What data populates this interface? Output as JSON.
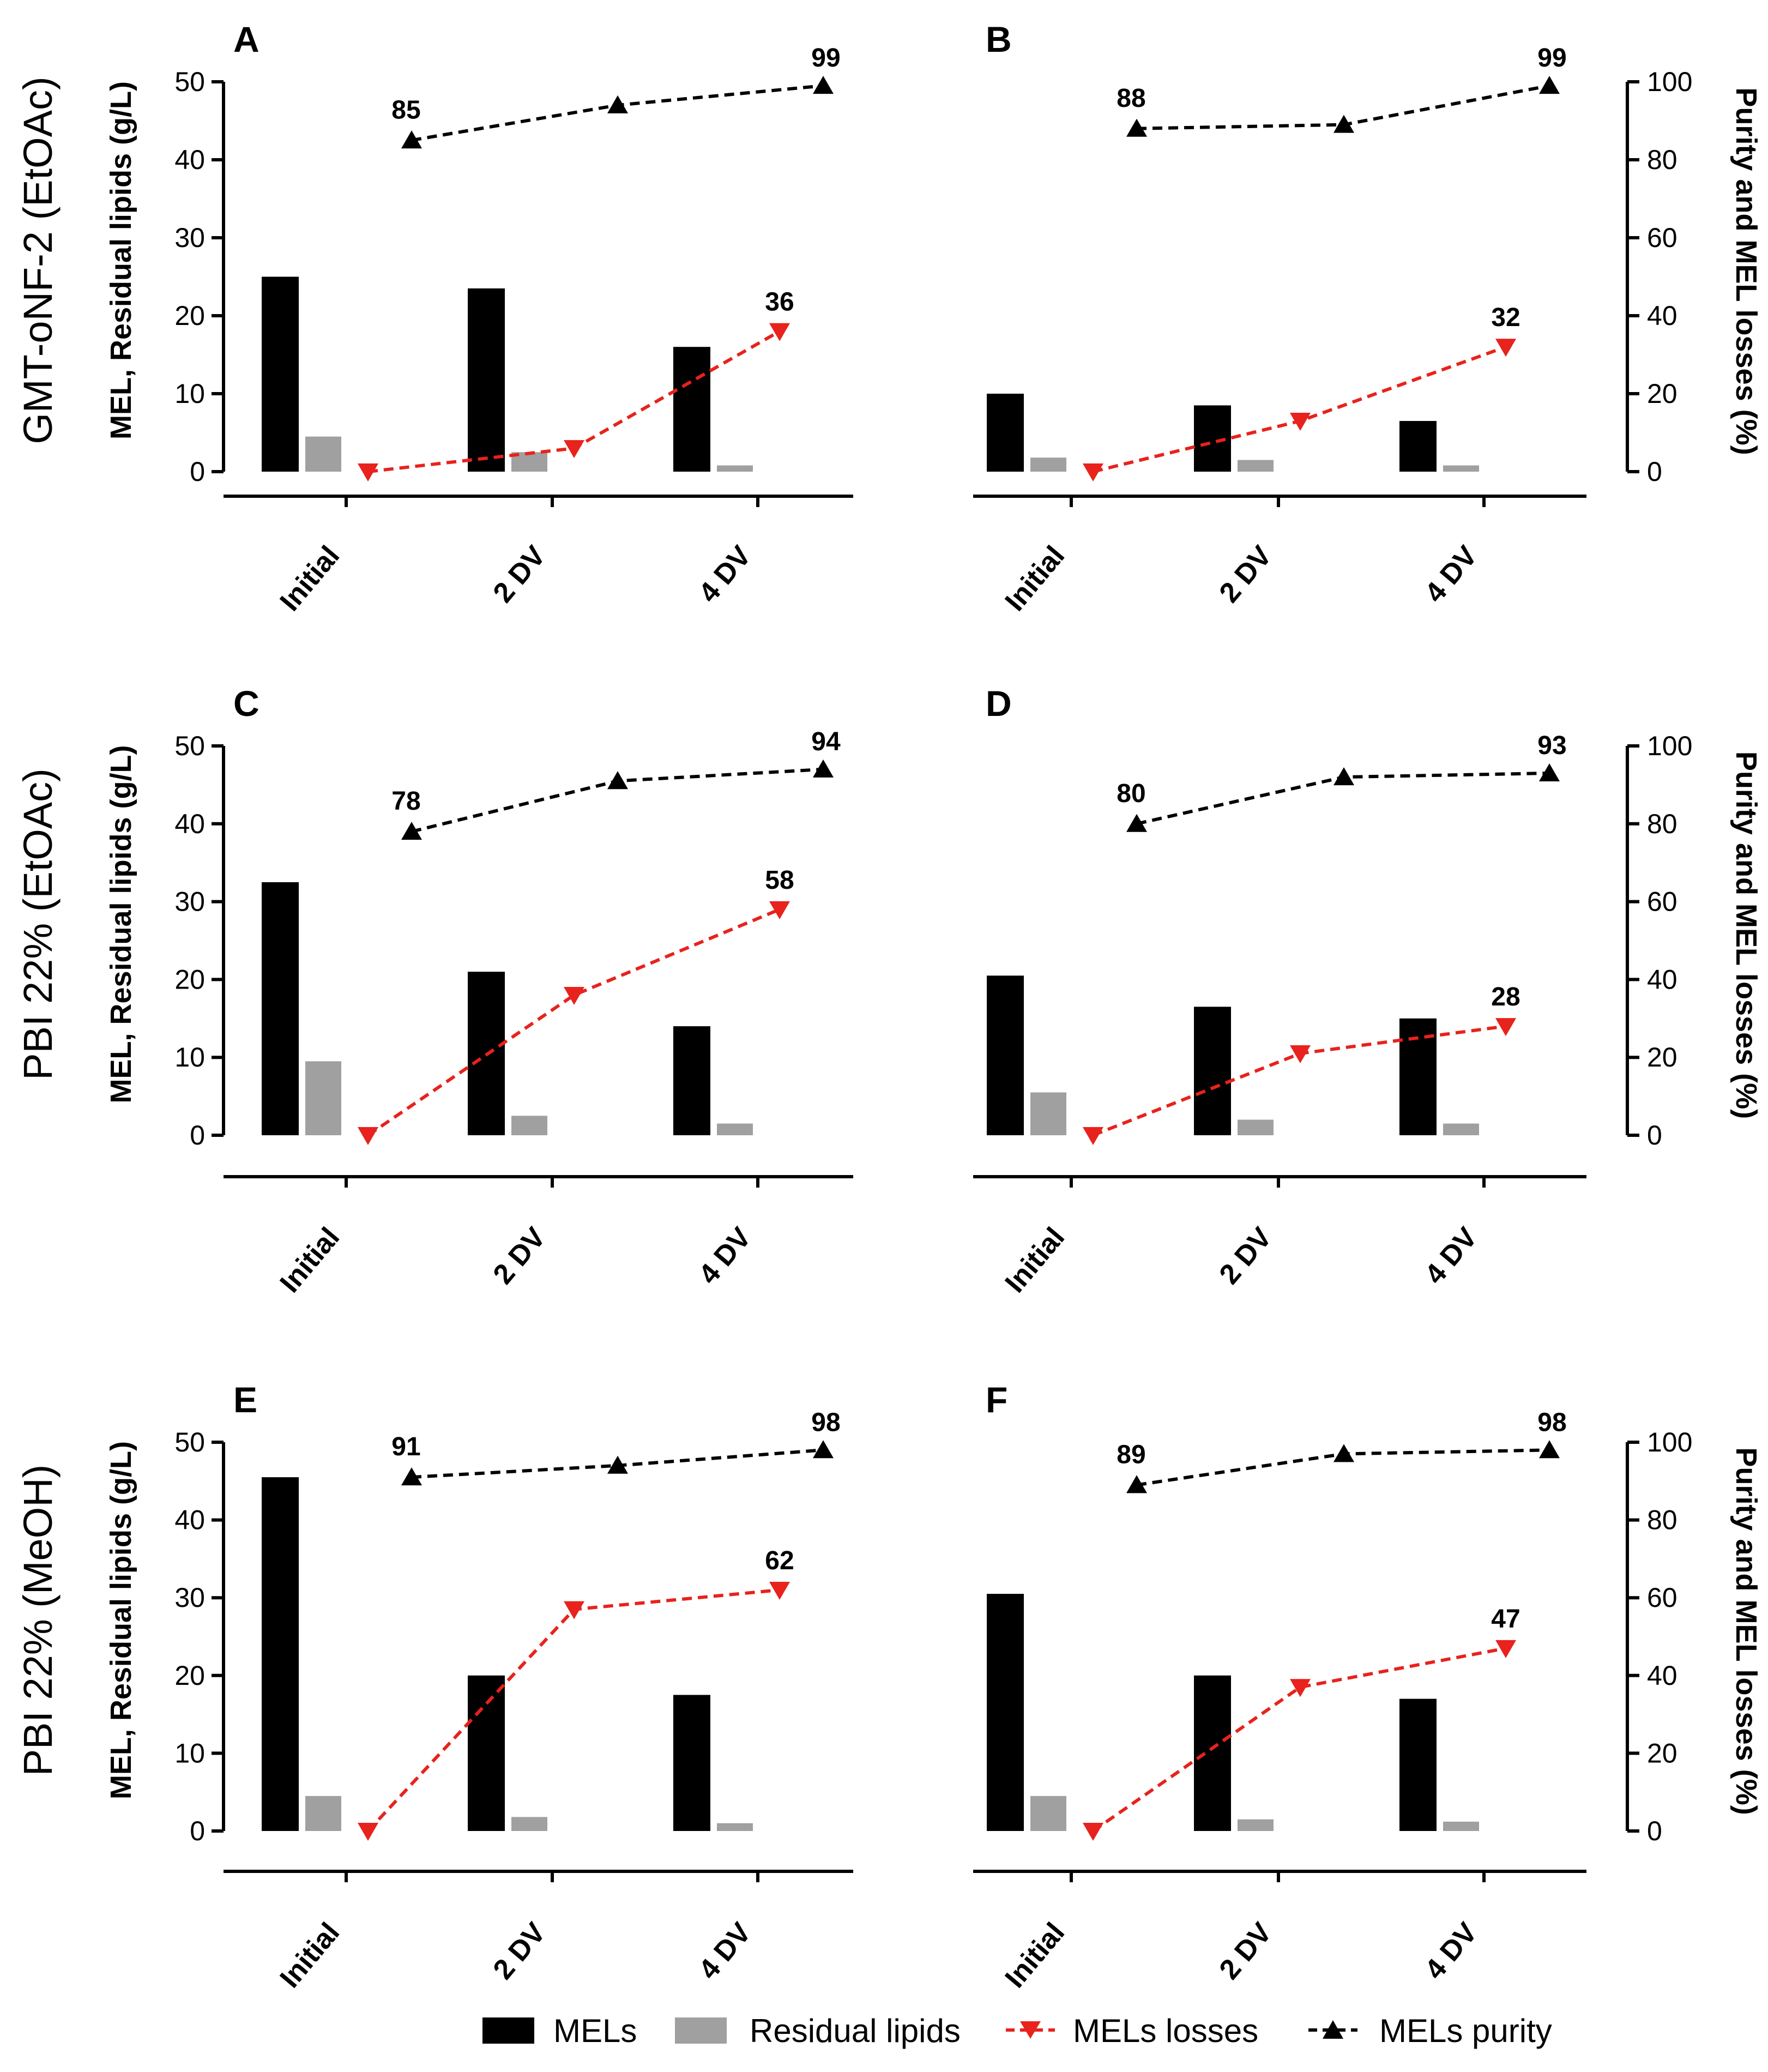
{
  "row_titles": [
    "GMT-oNF-2 (EtOAc)",
    "PBI 22% (EtOAc)",
    "PBI 22% (MeOH)"
  ],
  "left_axis_label": "MEL, Residual lipids (g/L)",
  "right_axis_label": "Purity and MEL losses (%)",
  "legend": [
    {
      "label": "MELs",
      "color": "#000000",
      "kind": "bar"
    },
    {
      "label": "Residual lipids",
      "color": "#a0a0a0",
      "kind": "bar"
    },
    {
      "label": "MELs losses",
      "color": "#e8221c",
      "kind": "down-triangle-dashed"
    },
    {
      "label": "MELs purity",
      "color": "#000000",
      "kind": "up-triangle-dashed"
    }
  ],
  "chart_data": [
    {
      "panel": "A",
      "type": "bar",
      "categories": [
        "Initial",
        "2 DV",
        "4 DV"
      ],
      "ylim_left": [
        0,
        50
      ],
      "ylim_right": [
        0,
        100
      ],
      "series": [
        {
          "name": "MELs",
          "axis": "left",
          "values": [
            25,
            23.5,
            16
          ]
        },
        {
          "name": "Residual lipids",
          "axis": "left",
          "values": [
            4.5,
            2.5,
            0.8
          ]
        },
        {
          "name": "MELs losses",
          "axis": "right",
          "values": [
            0,
            6,
            36
          ]
        },
        {
          "name": "MELs purity",
          "axis": "right",
          "values": [
            85,
            94,
            99
          ]
        }
      ],
      "labels": {
        "losses_last": "36",
        "purity_first": "85",
        "purity_last": "99"
      }
    },
    {
      "panel": "B",
      "type": "bar",
      "categories": [
        "Initial",
        "2 DV",
        "4 DV"
      ],
      "ylim_left": [
        0,
        50
      ],
      "ylim_right": [
        0,
        100
      ],
      "series": [
        {
          "name": "MELs",
          "axis": "left",
          "values": [
            10,
            8.5,
            6.5
          ]
        },
        {
          "name": "Residual lipids",
          "axis": "left",
          "values": [
            1.8,
            1.5,
            0.8
          ]
        },
        {
          "name": "MELs losses",
          "axis": "right",
          "values": [
            0,
            13,
            32
          ]
        },
        {
          "name": "MELs purity",
          "axis": "right",
          "values": [
            88,
            89,
            99
          ]
        }
      ],
      "labels": {
        "losses_last": "32",
        "purity_first": "88",
        "purity_last": "99"
      }
    },
    {
      "panel": "C",
      "type": "bar",
      "categories": [
        "Initial",
        "2 DV",
        "4 DV"
      ],
      "ylim_left": [
        0,
        50
      ],
      "ylim_right": [
        0,
        100
      ],
      "series": [
        {
          "name": "MELs",
          "axis": "left",
          "values": [
            32.5,
            21,
            14
          ]
        },
        {
          "name": "Residual lipids",
          "axis": "left",
          "values": [
            9.5,
            2.5,
            1.5
          ]
        },
        {
          "name": "MELs losses",
          "axis": "right",
          "values": [
            0,
            36,
            58
          ]
        },
        {
          "name": "MELs purity",
          "axis": "right",
          "values": [
            78,
            91,
            94
          ]
        }
      ],
      "labels": {
        "losses_last": "58",
        "purity_first": "78",
        "purity_last": "94"
      }
    },
    {
      "panel": "D",
      "type": "bar",
      "categories": [
        "Initial",
        "2 DV",
        "4 DV"
      ],
      "ylim_left": [
        0,
        50
      ],
      "ylim_right": [
        0,
        100
      ],
      "series": [
        {
          "name": "MELs",
          "axis": "left",
          "values": [
            20.5,
            16.5,
            15
          ]
        },
        {
          "name": "Residual lipids",
          "axis": "left",
          "values": [
            5.5,
            2,
            1.5
          ]
        },
        {
          "name": "MELs losses",
          "axis": "right",
          "values": [
            0,
            21,
            28
          ]
        },
        {
          "name": "MELs purity",
          "axis": "right",
          "values": [
            80,
            92,
            93
          ]
        }
      ],
      "labels": {
        "losses_last": "28",
        "purity_first": "80",
        "purity_last": "93"
      }
    },
    {
      "panel": "E",
      "type": "bar",
      "categories": [
        "Initial",
        "2 DV",
        "4 DV"
      ],
      "ylim_left": [
        0,
        50
      ],
      "ylim_right": [
        0,
        100
      ],
      "series": [
        {
          "name": "MELs",
          "axis": "left",
          "values": [
            45.5,
            20,
            17.5
          ]
        },
        {
          "name": "Residual lipids",
          "axis": "left",
          "values": [
            4.5,
            1.8,
            1
          ]
        },
        {
          "name": "MELs losses",
          "axis": "right",
          "values": [
            0,
            57,
            62
          ]
        },
        {
          "name": "MELs purity",
          "axis": "right",
          "values": [
            91,
            94,
            98
          ]
        }
      ],
      "labels": {
        "losses_last": "62",
        "purity_first": "91",
        "purity_last": "98"
      }
    },
    {
      "panel": "F",
      "type": "bar",
      "categories": [
        "Initial",
        "2 DV",
        "4 DV"
      ],
      "ylim_left": [
        0,
        50
      ],
      "ylim_right": [
        0,
        100
      ],
      "series": [
        {
          "name": "MELs",
          "axis": "left",
          "values": [
            30.5,
            20,
            17
          ]
        },
        {
          "name": "Residual lipids",
          "axis": "left",
          "values": [
            4.5,
            1.5,
            1.2
          ]
        },
        {
          "name": "MELs losses",
          "axis": "right",
          "values": [
            0,
            37,
            47
          ]
        },
        {
          "name": "MELs purity",
          "axis": "right",
          "values": [
            89,
            97,
            98
          ]
        }
      ],
      "labels": {
        "losses_last": "47",
        "purity_first": "89",
        "purity_last": "98"
      }
    }
  ]
}
